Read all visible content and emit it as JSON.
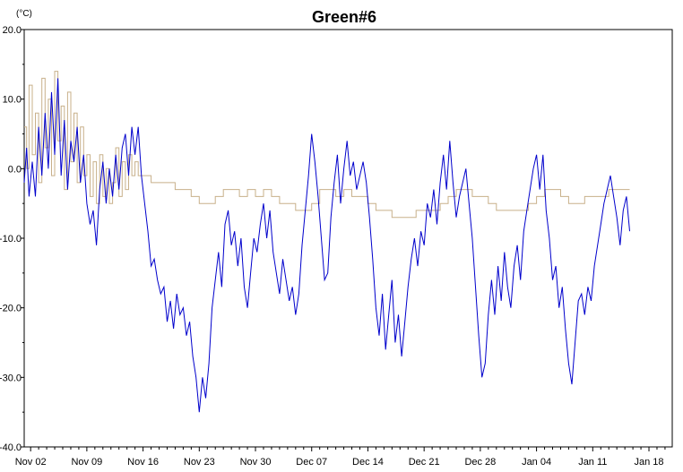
{
  "chart_data": {
    "type": "line",
    "title": "Green#6",
    "y_unit": "(°C)",
    "xlabel": "",
    "ylabel": "",
    "ylim": [
      -40,
      20
    ],
    "y_ticks": [
      20,
      10,
      0,
      -10,
      -20,
      -30,
      -40
    ],
    "y_tick_labels": [
      "20.0",
      "10.0",
      "0.0",
      "-10.0",
      "-20.0",
      "-30.0",
      "-40.0"
    ],
    "x_range_days": [
      -0.8,
      79.9
    ],
    "x_ticks": [
      {
        "label": "Nov 02",
        "day": 0
      },
      {
        "label": "Nov 09",
        "day": 7
      },
      {
        "label": "Nov 16",
        "day": 14
      },
      {
        "label": "Nov 23",
        "day": 21
      },
      {
        "label": "Nov 30",
        "day": 28
      },
      {
        "label": "Dec 07",
        "day": 35
      },
      {
        "label": "Dec 14",
        "day": 42
      },
      {
        "label": "Dec 21",
        "day": 49
      },
      {
        "label": "Dec 28",
        "day": 56
      },
      {
        "label": "Jan 04",
        "day": 63
      },
      {
        "label": "Jan 11",
        "day": 70
      },
      {
        "label": "Jan 18",
        "day": 77
      }
    ],
    "grid": false,
    "series": [
      {
        "color": "#0000cc",
        "step": false,
        "points": [
          [
            -0.8,
            -2
          ],
          [
            -0.5,
            3
          ],
          [
            -0.2,
            -4
          ],
          [
            0.2,
            1
          ],
          [
            0.6,
            -4
          ],
          [
            1.0,
            6
          ],
          [
            1.4,
            -1
          ],
          [
            1.8,
            8
          ],
          [
            2.2,
            0
          ],
          [
            2.6,
            11
          ],
          [
            3.0,
            2
          ],
          [
            3.4,
            13
          ],
          [
            3.8,
            -1
          ],
          [
            4.2,
            7
          ],
          [
            4.6,
            -3
          ],
          [
            5.0,
            4
          ],
          [
            5.4,
            1
          ],
          [
            5.8,
            6
          ],
          [
            6.2,
            -2
          ],
          [
            6.6,
            2
          ],
          [
            7.0,
            -5
          ],
          [
            7.4,
            -8
          ],
          [
            7.8,
            -6
          ],
          [
            8.2,
            -11
          ],
          [
            8.6,
            -3
          ],
          [
            9.0,
            1
          ],
          [
            9.4,
            -5
          ],
          [
            9.8,
            0
          ],
          [
            10.2,
            -4
          ],
          [
            10.6,
            2
          ],
          [
            11.0,
            -3
          ],
          [
            11.4,
            3
          ],
          [
            11.8,
            5
          ],
          [
            12.2,
            -1
          ],
          [
            12.6,
            6
          ],
          [
            13.0,
            2
          ],
          [
            13.4,
            6
          ],
          [
            13.8,
            -1
          ],
          [
            14.2,
            -5
          ],
          [
            14.6,
            -9
          ],
          [
            15.0,
            -14
          ],
          [
            15.4,
            -13
          ],
          [
            15.8,
            -16
          ],
          [
            16.2,
            -18
          ],
          [
            16.6,
            -17
          ],
          [
            17.0,
            -22
          ],
          [
            17.4,
            -19
          ],
          [
            17.8,
            -23
          ],
          [
            18.2,
            -18
          ],
          [
            18.6,
            -21
          ],
          [
            19.0,
            -20
          ],
          [
            19.4,
            -24
          ],
          [
            19.8,
            -22
          ],
          [
            20.2,
            -27
          ],
          [
            20.6,
            -30
          ],
          [
            21.0,
            -35
          ],
          [
            21.4,
            -30
          ],
          [
            21.8,
            -33
          ],
          [
            22.2,
            -28
          ],
          [
            22.6,
            -20
          ],
          [
            23.0,
            -16
          ],
          [
            23.4,
            -12
          ],
          [
            23.8,
            -17
          ],
          [
            24.2,
            -8
          ],
          [
            24.6,
            -6
          ],
          [
            25.0,
            -11
          ],
          [
            25.4,
            -9
          ],
          [
            25.8,
            -14
          ],
          [
            26.2,
            -10
          ],
          [
            26.6,
            -17
          ],
          [
            27.0,
            -20
          ],
          [
            27.4,
            -15
          ],
          [
            27.8,
            -10
          ],
          [
            28.2,
            -12
          ],
          [
            28.6,
            -8
          ],
          [
            29.0,
            -5
          ],
          [
            29.4,
            -10
          ],
          [
            29.8,
            -6
          ],
          [
            30.2,
            -12
          ],
          [
            30.6,
            -15
          ],
          [
            31.0,
            -18
          ],
          [
            31.4,
            -13
          ],
          [
            31.8,
            -16
          ],
          [
            32.2,
            -19
          ],
          [
            32.6,
            -17
          ],
          [
            33.0,
            -21
          ],
          [
            33.4,
            -18
          ],
          [
            33.8,
            -11
          ],
          [
            34.2,
            -6
          ],
          [
            34.6,
            -1
          ],
          [
            35.0,
            5
          ],
          [
            35.4,
            1
          ],
          [
            35.8,
            -4
          ],
          [
            36.2,
            -10
          ],
          [
            36.6,
            -16
          ],
          [
            37.0,
            -15
          ],
          [
            37.4,
            -7
          ],
          [
            37.8,
            -2
          ],
          [
            38.2,
            2
          ],
          [
            38.6,
            -5
          ],
          [
            39.0,
            0
          ],
          [
            39.4,
            4
          ],
          [
            39.8,
            -1
          ],
          [
            40.2,
            1
          ],
          [
            40.6,
            -3
          ],
          [
            41.0,
            -1
          ],
          [
            41.4,
            1
          ],
          [
            41.8,
            -2
          ],
          [
            42.2,
            -7
          ],
          [
            42.6,
            -13
          ],
          [
            43.0,
            -20
          ],
          [
            43.4,
            -24
          ],
          [
            43.8,
            -18
          ],
          [
            44.2,
            -26
          ],
          [
            44.6,
            -21
          ],
          [
            45.0,
            -16
          ],
          [
            45.4,
            -25
          ],
          [
            45.8,
            -21
          ],
          [
            46.2,
            -27
          ],
          [
            46.6,
            -22
          ],
          [
            47.0,
            -17
          ],
          [
            47.4,
            -13
          ],
          [
            47.8,
            -10
          ],
          [
            48.2,
            -14
          ],
          [
            48.6,
            -9
          ],
          [
            49.0,
            -11
          ],
          [
            49.4,
            -5
          ],
          [
            49.8,
            -7
          ],
          [
            50.2,
            -3
          ],
          [
            50.6,
            -8
          ],
          [
            51.0,
            -2
          ],
          [
            51.4,
            2
          ],
          [
            51.8,
            -3
          ],
          [
            52.2,
            4
          ],
          [
            52.6,
            -2
          ],
          [
            53.0,
            -7
          ],
          [
            53.4,
            -4
          ],
          [
            53.8,
            -2
          ],
          [
            54.2,
            0
          ],
          [
            54.6,
            -5
          ],
          [
            55.0,
            -10
          ],
          [
            55.4,
            -17
          ],
          [
            55.8,
            -24
          ],
          [
            56.2,
            -30
          ],
          [
            56.6,
            -28
          ],
          [
            57.0,
            -21
          ],
          [
            57.4,
            -16
          ],
          [
            57.8,
            -21
          ],
          [
            58.2,
            -14
          ],
          [
            58.6,
            -19
          ],
          [
            59.0,
            -12
          ],
          [
            59.4,
            -17
          ],
          [
            59.8,
            -20
          ],
          [
            60.2,
            -14
          ],
          [
            60.6,
            -11
          ],
          [
            61.0,
            -16
          ],
          [
            61.4,
            -9
          ],
          [
            61.8,
            -6
          ],
          [
            62.2,
            -3
          ],
          [
            62.6,
            0
          ],
          [
            63.0,
            2
          ],
          [
            63.4,
            -3
          ],
          [
            63.8,
            2
          ],
          [
            64.2,
            -6
          ],
          [
            64.6,
            -10
          ],
          [
            65.0,
            -16
          ],
          [
            65.4,
            -14
          ],
          [
            65.8,
            -20
          ],
          [
            66.2,
            -17
          ],
          [
            66.6,
            -23
          ],
          [
            67.0,
            -28
          ],
          [
            67.4,
            -31
          ],
          [
            67.8,
            -25
          ],
          [
            68.2,
            -19
          ],
          [
            68.6,
            -18
          ],
          [
            69.0,
            -21
          ],
          [
            69.4,
            -17
          ],
          [
            69.8,
            -19
          ],
          [
            70.2,
            -14
          ],
          [
            70.6,
            -11
          ],
          [
            71.0,
            -8
          ],
          [
            71.4,
            -5
          ],
          [
            71.8,
            -3
          ],
          [
            72.2,
            -1
          ],
          [
            72.6,
            -4
          ],
          [
            73.0,
            -7
          ],
          [
            73.4,
            -11
          ],
          [
            73.8,
            -6
          ],
          [
            74.2,
            -4
          ],
          [
            74.6,
            -9
          ]
        ]
      },
      {
        "color": "#c8b08a",
        "step": true,
        "points": [
          [
            -0.8,
            6
          ],
          [
            -0.5,
            0
          ],
          [
            -0.2,
            12
          ],
          [
            0.2,
            2
          ],
          [
            0.6,
            8
          ],
          [
            1.0,
            -2
          ],
          [
            1.4,
            13
          ],
          [
            1.8,
            3
          ],
          [
            2.2,
            10
          ],
          [
            2.6,
            -1
          ],
          [
            3.0,
            14
          ],
          [
            3.4,
            4
          ],
          [
            3.8,
            9
          ],
          [
            4.2,
            -3
          ],
          [
            4.6,
            11
          ],
          [
            5.0,
            1
          ],
          [
            5.4,
            8
          ],
          [
            5.8,
            -2
          ],
          [
            6.2,
            6
          ],
          [
            6.6,
            -1
          ],
          [
            7.0,
            2
          ],
          [
            7.4,
            -4
          ],
          [
            7.8,
            1
          ],
          [
            8.2,
            -5
          ],
          [
            8.6,
            2
          ],
          [
            9.0,
            -4
          ],
          [
            9.4,
            0
          ],
          [
            9.8,
            -5
          ],
          [
            10.2,
            -2
          ],
          [
            10.6,
            3
          ],
          [
            11.0,
            -4
          ],
          [
            11.4,
            1
          ],
          [
            11.8,
            -3
          ],
          [
            12.2,
            2
          ],
          [
            12.6,
            -1
          ],
          [
            13.0,
            1
          ],
          [
            13.4,
            -1
          ],
          [
            14.0,
            -1
          ],
          [
            15.0,
            -2
          ],
          [
            16.0,
            -2
          ],
          [
            17.0,
            -2
          ],
          [
            18.0,
            -3
          ],
          [
            19.0,
            -3
          ],
          [
            20.0,
            -4
          ],
          [
            21.0,
            -5
          ],
          [
            22.0,
            -5
          ],
          [
            23.0,
            -4
          ],
          [
            24.0,
            -3
          ],
          [
            25.0,
            -3
          ],
          [
            26.0,
            -4
          ],
          [
            27.0,
            -3
          ],
          [
            28.0,
            -4
          ],
          [
            29.0,
            -3
          ],
          [
            30.0,
            -4
          ],
          [
            31.0,
            -5
          ],
          [
            32.0,
            -5
          ],
          [
            33.0,
            -6
          ],
          [
            34.0,
            -6
          ],
          [
            35.0,
            -5
          ],
          [
            36.0,
            -3
          ],
          [
            37.0,
            -3
          ],
          [
            38.0,
            -4
          ],
          [
            39.0,
            -3
          ],
          [
            40.0,
            -4
          ],
          [
            41.0,
            -4
          ],
          [
            42.0,
            -5
          ],
          [
            43.0,
            -6
          ],
          [
            44.0,
            -6
          ],
          [
            45.0,
            -7
          ],
          [
            46.0,
            -7
          ],
          [
            47.0,
            -7
          ],
          [
            48.0,
            -6
          ],
          [
            49.0,
            -6
          ],
          [
            50.0,
            -6
          ],
          [
            51.0,
            -5
          ],
          [
            52.0,
            -4
          ],
          [
            53.0,
            -3
          ],
          [
            54.0,
            -3
          ],
          [
            55.0,
            -4
          ],
          [
            56.0,
            -4
          ],
          [
            57.0,
            -5
          ],
          [
            58.0,
            -6
          ],
          [
            59.0,
            -6
          ],
          [
            60.0,
            -6
          ],
          [
            61.0,
            -6
          ],
          [
            62.0,
            -5
          ],
          [
            63.0,
            -4
          ],
          [
            64.0,
            -3
          ],
          [
            65.0,
            -3
          ],
          [
            66.0,
            -4
          ],
          [
            67.0,
            -5
          ],
          [
            68.0,
            -5
          ],
          [
            69.0,
            -4
          ],
          [
            70.0,
            -4
          ],
          [
            71.0,
            -4
          ],
          [
            72.0,
            -3
          ],
          [
            73.0,
            -3
          ],
          [
            74.0,
            -3
          ],
          [
            74.6,
            -3
          ]
        ]
      }
    ]
  }
}
